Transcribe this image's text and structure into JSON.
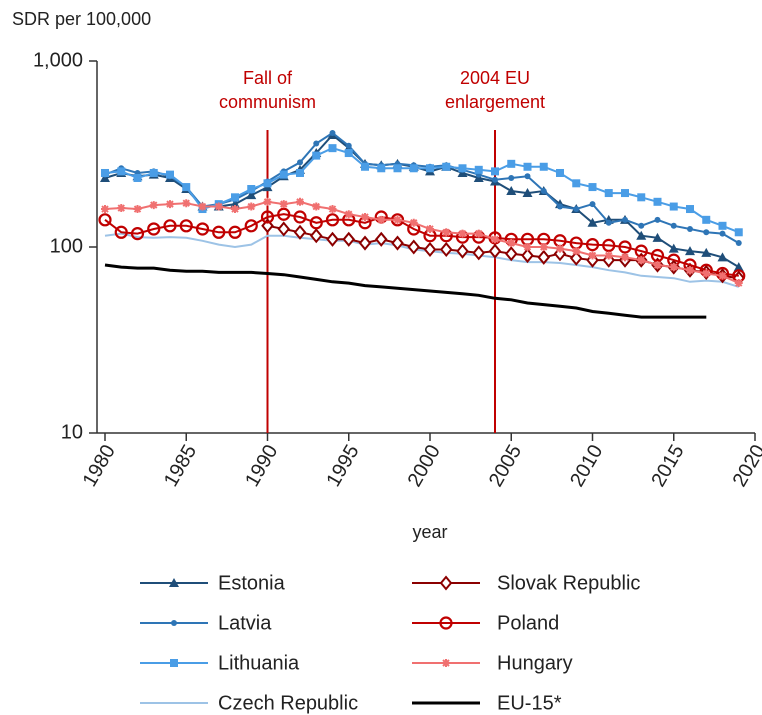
{
  "chart_data": {
    "type": "line",
    "y_axis_label": "SDR per 100,000",
    "x_axis_label": "year",
    "log_scale_y": true,
    "grid": false,
    "xlim": [
      1980,
      2020
    ],
    "xticks": [
      1980,
      1985,
      1990,
      1995,
      2000,
      2005,
      2010,
      2015,
      2020
    ],
    "ylim": [
      10,
      1000
    ],
    "yticks": [
      {
        "value": 1000,
        "label": "1,000"
      },
      100,
      10
    ],
    "annotations": [
      {
        "x": 1990,
        "lines": [
          "Fall of",
          "communism"
        ],
        "color": "#c00000"
      },
      {
        "x": 2004,
        "lines": [
          "2004 EU",
          "enlargement"
        ],
        "color": "#c00000"
      }
    ],
    "x": [
      1980,
      1981,
      1982,
      1983,
      1984,
      1985,
      1986,
      1987,
      1988,
      1989,
      1990,
      1991,
      1992,
      1993,
      1994,
      1995,
      1996,
      1997,
      1998,
      1999,
      2000,
      2001,
      2002,
      2003,
      2004,
      2005,
      2006,
      2007,
      2008,
      2009,
      2010,
      2011,
      2012,
      2013,
      2014,
      2015,
      2016,
      2017,
      2018,
      2019
    ],
    "series": [
      {
        "name": "Estonia",
        "color": "#1f4e79",
        "marker": "triangle",
        "values": [
          235,
          250,
          240,
          245,
          235,
          205,
          165,
          165,
          170,
          190,
          210,
          240,
          260,
          320,
          400,
          340,
          280,
          275,
          280,
          270,
          255,
          270,
          250,
          235,
          225,
          200,
          195,
          200,
          170,
          160,
          135,
          140,
          140,
          115,
          112,
          98,
          95,
          93,
          88,
          78
        ]
      },
      {
        "name": "Latvia",
        "color": "#2e75b6",
        "marker": "circle",
        "values": [
          245,
          265,
          250,
          255,
          240,
          210,
          165,
          170,
          180,
          200,
          225,
          255,
          285,
          360,
          410,
          350,
          280,
          275,
          280,
          275,
          270,
          275,
          260,
          245,
          230,
          235,
          240,
          200,
          165,
          160,
          170,
          135,
          140,
          130,
          140,
          130,
          125,
          120,
          118,
          105
        ]
      },
      {
        "name": "Lithuania",
        "color": "#4a9de6",
        "marker": "square",
        "values": [
          250,
          255,
          235,
          250,
          245,
          210,
          160,
          170,
          185,
          205,
          220,
          245,
          250,
          310,
          340,
          320,
          270,
          265,
          265,
          265,
          265,
          270,
          265,
          260,
          255,
          280,
          270,
          270,
          250,
          220,
          210,
          195,
          195,
          185,
          175,
          165,
          160,
          140,
          130,
          120
        ]
      },
      {
        "name": "Czech Republic",
        "color": "#9dc3e6",
        "marker": "none",
        "values": [
          115,
          118,
          113,
          112,
          113,
          112,
          108,
          103,
          100,
          103,
          115,
          115,
          112,
          110,
          108,
          108,
          103,
          105,
          102,
          97,
          95,
          93,
          92,
          90,
          88,
          85,
          83,
          83,
          82,
          80,
          78,
          75,
          73,
          70,
          69,
          68,
          65,
          66,
          65,
          61
        ]
      },
      {
        "name": "Slovak Republic",
        "color": "#8b0000",
        "marker": "diamond",
        "values": [
          null,
          null,
          null,
          null,
          null,
          null,
          null,
          null,
          null,
          null,
          130,
          125,
          120,
          115,
          110,
          110,
          105,
          110,
          105,
          100,
          97,
          97,
          95,
          93,
          95,
          92,
          90,
          88,
          92,
          87,
          85,
          85,
          85,
          85,
          80,
          78,
          75,
          73,
          70,
          68
        ]
      },
      {
        "name": "Poland",
        "color": "#c00000",
        "marker": "open-circle",
        "values": [
          140,
          120,
          118,
          125,
          130,
          130,
          125,
          120,
          120,
          130,
          145,
          150,
          145,
          135,
          140,
          140,
          135,
          145,
          140,
          125,
          115,
          115,
          113,
          113,
          112,
          110,
          110,
          110,
          108,
          105,
          103,
          102,
          100,
          95,
          90,
          85,
          80,
          75,
          72,
          70
        ]
      },
      {
        "name": "Hungary",
        "color": "#f07070",
        "marker": "star",
        "values": [
          160,
          162,
          160,
          168,
          170,
          172,
          165,
          165,
          160,
          165,
          175,
          170,
          175,
          165,
          160,
          150,
          145,
          140,
          140,
          135,
          125,
          120,
          118,
          118,
          110,
          105,
          100,
          100,
          98,
          95,
          90,
          90,
          88,
          85,
          80,
          78,
          75,
          72,
          70,
          64
        ]
      },
      {
        "name": "EU-15*",
        "color": "#000000",
        "marker": "none",
        "values": [
          80,
          78,
          77,
          77,
          75,
          74,
          74,
          73,
          73,
          73,
          72,
          71,
          69,
          67,
          65,
          64,
          62,
          61,
          60,
          59,
          58,
          57,
          56,
          55,
          53,
          52,
          50,
          49,
          48,
          47,
          45,
          44,
          43,
          42,
          42,
          42,
          42,
          42,
          null,
          null
        ]
      }
    ]
  }
}
